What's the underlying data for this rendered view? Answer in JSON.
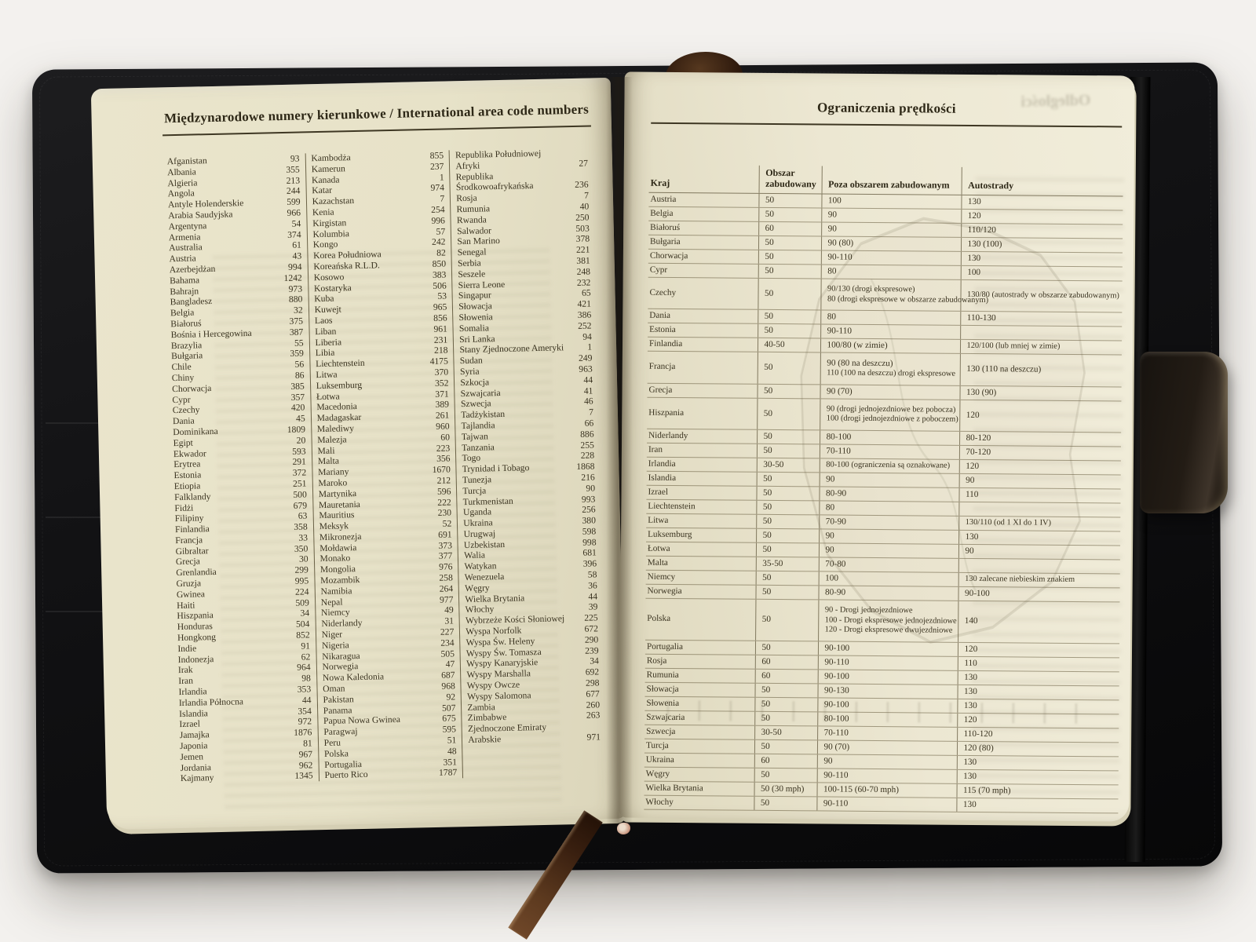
{
  "colors": {
    "cover": "#141414",
    "page": "#eae5cc",
    "ribbon": "#5d3a1f",
    "ink": "#39321f"
  },
  "left_page": {
    "title": "Międzynarodowe numery kierunkowe / International area code numbers",
    "columns": [
      {
        "entries": [
          [
            "Afganistan",
            "93"
          ],
          [
            "Albania",
            "355"
          ],
          [
            "Algieria",
            "213"
          ],
          [
            "Angola",
            "244"
          ],
          [
            "Antyle Holenderskie",
            "599"
          ],
          [
            "Arabia Saudyjska",
            "966"
          ],
          [
            "Argentyna",
            "54"
          ],
          [
            "Armenia",
            "374"
          ],
          [
            "Australia",
            "61"
          ],
          [
            "Austria",
            "43"
          ],
          [
            "Azerbejdżan",
            "994"
          ],
          [
            "Bahama",
            "1242"
          ],
          [
            "Bahrajn",
            "973"
          ],
          [
            "Bangladesz",
            "880"
          ],
          [
            "Belgia",
            "32"
          ],
          [
            "Białoruś",
            "375"
          ],
          [
            "Bośnia i Hercegowina",
            "387"
          ],
          [
            "Brazylia",
            "55"
          ],
          [
            "Bułgaria",
            "359"
          ],
          [
            "Chile",
            "56"
          ],
          [
            "Chiny",
            "86"
          ],
          [
            "Chorwacja",
            "385"
          ],
          [
            "Cypr",
            "357"
          ],
          [
            "Czechy",
            "420"
          ],
          [
            "Dania",
            "45"
          ],
          [
            "Dominikana",
            "1809"
          ],
          [
            "Egipt",
            "20"
          ],
          [
            "Ekwador",
            "593"
          ],
          [
            "Erytrea",
            "291"
          ],
          [
            "Estonia",
            "372"
          ],
          [
            "Etiopia",
            "251"
          ],
          [
            "Falklandy",
            "500"
          ],
          [
            "Fidżi",
            "679"
          ],
          [
            "Filipiny",
            "63"
          ],
          [
            "Finlandia",
            "358"
          ],
          [
            "Francja",
            "33"
          ],
          [
            "Gibraltar",
            "350"
          ],
          [
            "Grecja",
            "30"
          ],
          [
            "Grenlandia",
            "299"
          ],
          [
            "Gruzja",
            "995"
          ],
          [
            "Gwinea",
            "224"
          ],
          [
            "Haiti",
            "509"
          ],
          [
            "Hiszpania",
            "34"
          ],
          [
            "Honduras",
            "504"
          ],
          [
            "Hongkong",
            "852"
          ],
          [
            "Indie",
            "91"
          ],
          [
            "Indonezja",
            "62"
          ],
          [
            "Irak",
            "964"
          ],
          [
            "Iran",
            "98"
          ],
          [
            "Irlandia",
            "353"
          ],
          [
            "Irlandia Północna",
            "44"
          ],
          [
            "Islandia",
            "354"
          ],
          [
            "Izrael",
            "972"
          ],
          [
            "Jamajka",
            "1876"
          ],
          [
            "Japonia",
            "81"
          ],
          [
            "Jemen",
            "967"
          ],
          [
            "Jordania",
            "962"
          ],
          [
            "Kajmany",
            "1345"
          ]
        ]
      },
      {
        "entries": [
          [
            "Kambodża",
            "855"
          ],
          [
            "Kamerun",
            "237"
          ],
          [
            "Kanada",
            "1"
          ],
          [
            "Katar",
            "974"
          ],
          [
            "Kazachstan",
            "7"
          ],
          [
            "Kenia",
            "254"
          ],
          [
            "Kirgistan",
            "996"
          ],
          [
            "Kolumbia",
            "57"
          ],
          [
            "Kongo",
            "242"
          ],
          [
            "Korea Południowa",
            "82"
          ],
          [
            "Koreańska R.L.D.",
            "850"
          ],
          [
            "Kosowo",
            "383"
          ],
          [
            "Kostaryka",
            "506"
          ],
          [
            "Kuba",
            "53"
          ],
          [
            "Kuwejt",
            "965"
          ],
          [
            "Laos",
            "856"
          ],
          [
            "Liban",
            "961"
          ],
          [
            "Liberia",
            "231"
          ],
          [
            "Libia",
            "218"
          ],
          [
            "Liechtenstein",
            "4175"
          ],
          [
            "Litwa",
            "370"
          ],
          [
            "Luksemburg",
            "352"
          ],
          [
            "Łotwa",
            "371"
          ],
          [
            "Macedonia",
            "389"
          ],
          [
            "Madagaskar",
            "261"
          ],
          [
            "Malediwy",
            "960"
          ],
          [
            "Malezja",
            "60"
          ],
          [
            "Mali",
            "223"
          ],
          [
            "Malta",
            "356"
          ],
          [
            "Mariany",
            "1670"
          ],
          [
            "Maroko",
            "212"
          ],
          [
            "Martynika",
            "596"
          ],
          [
            "Mauretania",
            "222"
          ],
          [
            "Mauritius",
            "230"
          ],
          [
            "Meksyk",
            "52"
          ],
          [
            "Mikronezja",
            "691"
          ],
          [
            "Mołdawia",
            "373"
          ],
          [
            "Monako",
            "377"
          ],
          [
            "Mongolia",
            "976"
          ],
          [
            "Mozambik",
            "258"
          ],
          [
            "Namibia",
            "264"
          ],
          [
            "Nepal",
            "977"
          ],
          [
            "Niemcy",
            "49"
          ],
          [
            "Niderlandy",
            "31"
          ],
          [
            "Niger",
            "227"
          ],
          [
            "Nigeria",
            "234"
          ],
          [
            "Nikaragua",
            "505"
          ],
          [
            "Norwegia",
            "47"
          ],
          [
            "Nowa Kaledonia",
            "687"
          ],
          [
            "Oman",
            "968"
          ],
          [
            "Pakistan",
            "92"
          ],
          [
            "Panama",
            "507"
          ],
          [
            "Papua Nowa Gwinea",
            "675"
          ],
          [
            "Paragwaj",
            "595"
          ],
          [
            "Peru",
            "51"
          ],
          [
            "Polska",
            "48"
          ],
          [
            "Portugalia",
            "351"
          ],
          [
            "Puerto Rico",
            "1787"
          ]
        ]
      },
      {
        "entries": [
          [
            "Republika Południowej\nAfryki",
            "27"
          ],
          [
            "Republika\nŚrodkowoafrykańska",
            "236"
          ],
          [
            "Rosja",
            "7"
          ],
          [
            "Rumunia",
            "40"
          ],
          [
            "Rwanda",
            "250"
          ],
          [
            "Salwador",
            "503"
          ],
          [
            "San Marino",
            "378"
          ],
          [
            "Senegal",
            "221"
          ],
          [
            "Serbia",
            "381"
          ],
          [
            "Seszele",
            "248"
          ],
          [
            "Sierra Leone",
            "232"
          ],
          [
            "Singapur",
            "65"
          ],
          [
            "Słowacja",
            "421"
          ],
          [
            "Słowenia",
            "386"
          ],
          [
            "Somalia",
            "252"
          ],
          [
            "Sri Lanka",
            "94"
          ],
          [
            "Stany Zjednoczone Ameryki",
            "1"
          ],
          [
            "Sudan",
            "249"
          ],
          [
            "Syria",
            "963"
          ],
          [
            "Szkocja",
            "44"
          ],
          [
            "Szwajcaria",
            "41"
          ],
          [
            "Szwecja",
            "46"
          ],
          [
            "Tadżykistan",
            "7"
          ],
          [
            "Tajlandia",
            "66"
          ],
          [
            "Tajwan",
            "886"
          ],
          [
            "Tanzania",
            "255"
          ],
          [
            "Togo",
            "228"
          ],
          [
            "Trynidad i Tobago",
            "1868"
          ],
          [
            "Tunezja",
            "216"
          ],
          [
            "Turcja",
            "90"
          ],
          [
            "Turkmenistan",
            "993"
          ],
          [
            "Uganda",
            "256"
          ],
          [
            "Ukraina",
            "380"
          ],
          [
            "Urugwaj",
            "598"
          ],
          [
            "Uzbekistan",
            "998"
          ],
          [
            "Walia",
            "681"
          ],
          [
            "Watykan",
            "396"
          ],
          [
            "Wenezuela",
            "58"
          ],
          [
            "Węgry",
            "36"
          ],
          [
            "Wielka Brytania",
            "44"
          ],
          [
            "Włochy",
            "39"
          ],
          [
            "Wybrzeże Kości Słoniowej",
            "225"
          ],
          [
            "Wyspa Norfolk",
            "672"
          ],
          [
            "Wyspa Św. Heleny",
            "290"
          ],
          [
            "Wyspy Św. Tomasza",
            "239"
          ],
          [
            "Wyspy Kanaryjskie",
            "34"
          ],
          [
            "Wyspy Marshalla",
            "692"
          ],
          [
            "Wyspy Owcze",
            "298"
          ],
          [
            "Wyspy Salomona",
            "677"
          ],
          [
            "Zambia",
            "260"
          ],
          [
            "Zimbabwe",
            "263"
          ],
          [
            "Zjednoczone Emiraty\nArabskie",
            "971"
          ]
        ]
      }
    ]
  },
  "right_page": {
    "title": "Ograniczenia prędkości",
    "ghost_text": "Odległości",
    "table": {
      "headers": [
        "Kraj",
        "Obszar zabudowany",
        "Poza obszarem zabudowanym",
        "Autostrady"
      ],
      "rows": [
        [
          "Austria",
          "50",
          [
            "100"
          ],
          [
            "130"
          ]
        ],
        [
          "Belgia",
          "50",
          [
            "90"
          ],
          [
            "120"
          ]
        ],
        [
          "Białoruś",
          "60",
          [
            "90"
          ],
          [
            "110/120"
          ]
        ],
        [
          "Bułgaria",
          "50",
          [
            "90 (80)"
          ],
          [
            "130 (100)"
          ]
        ],
        [
          "Chorwacja",
          "50",
          [
            "90-110"
          ],
          [
            "130"
          ]
        ],
        [
          "Cypr",
          "50",
          [
            "80"
          ],
          [
            "100"
          ]
        ],
        [
          "Czechy",
          "50",
          [
            "90/130 (drogi ekspresowe)",
            "80 (drogi ekspresowe w obszarze zabudowanym)"
          ],
          [
            "130/80 (autostrady w obszarze zabudowanym)"
          ]
        ],
        [
          "Dania",
          "50",
          [
            "80"
          ],
          [
            "110-130"
          ]
        ],
        [
          "Estonia",
          "50",
          [
            "90-110"
          ],
          []
        ],
        [
          "Finlandia",
          "40-50",
          [
            "100/80 (w zimie)"
          ],
          [
            "120/100 (lub mniej w zimie)"
          ]
        ],
        [
          "Francja",
          "50",
          [
            "90 (80 na deszczu)",
            "110 (100 na deszczu) drogi ekspresowe"
          ],
          [
            "130 (110 na deszczu)"
          ]
        ],
        [
          "Grecja",
          "50",
          [
            "90 (70)"
          ],
          [
            "130 (90)"
          ]
        ],
        [
          "Hiszpania",
          "50",
          [
            "90 (drogi jednojezdniowe bez pobocza)",
            "100 (drogi jednojezdniowe z poboczem)"
          ],
          [
            "120"
          ]
        ],
        [
          "Niderlandy",
          "50",
          [
            "80-100"
          ],
          [
            "80-120"
          ]
        ],
        [
          "Iran",
          "50",
          [
            "70-110"
          ],
          [
            "70-120"
          ]
        ],
        [
          "Irlandia",
          "30-50",
          [
            "80-100 (ograniczenia są oznakowane)"
          ],
          [
            "120"
          ]
        ],
        [
          "Islandia",
          "50",
          [
            "90"
          ],
          [
            "90"
          ]
        ],
        [
          "Izrael",
          "50",
          [
            "80-90"
          ],
          [
            "110"
          ]
        ],
        [
          "Liechtenstein",
          "50",
          [
            "80"
          ],
          []
        ],
        [
          "Litwa",
          "50",
          [
            "70-90"
          ],
          [
            "130/110 (od 1 XI do 1 IV)"
          ]
        ],
        [
          "Luksemburg",
          "50",
          [
            "90"
          ],
          [
            "130"
          ]
        ],
        [
          "Łotwa",
          "50",
          [
            "90"
          ],
          [
            "90"
          ]
        ],
        [
          "Malta",
          "35-50",
          [
            "70-80"
          ],
          []
        ],
        [
          "Niemcy",
          "50",
          [
            "100"
          ],
          [
            "130 zalecane niebieskim znakiem"
          ]
        ],
        [
          "Norwegia",
          "50",
          [
            "80-90"
          ],
          [
            "90-100"
          ]
        ],
        [
          "Polska",
          "50",
          [
            "90 - Drogi jednojezdniowe",
            "100 - Drogi ekspresowe jednojezdniowe",
            "120 - Drogi ekspresowe dwujezdniowe"
          ],
          [
            "140"
          ]
        ],
        [
          "Portugalia",
          "50",
          [
            "90-100"
          ],
          [
            "120"
          ]
        ],
        [
          "Rosja",
          "60",
          [
            "90-110"
          ],
          [
            "110"
          ]
        ],
        [
          "Rumunia",
          "60",
          [
            "90-100"
          ],
          [
            "130"
          ]
        ],
        [
          "Słowacja",
          "50",
          [
            "90-130"
          ],
          [
            "130"
          ]
        ],
        [
          "Słowenia",
          "50",
          [
            "90-100"
          ],
          [
            "130"
          ]
        ],
        [
          "Szwajcaria",
          "50",
          [
            "80-100"
          ],
          [
            "120"
          ]
        ],
        [
          "Szwecja",
          "30-50",
          [
            "70-110"
          ],
          [
            "110-120"
          ]
        ],
        [
          "Turcja",
          "50",
          [
            "90 (70)"
          ],
          [
            "120 (80)"
          ]
        ],
        [
          "Ukraina",
          "60",
          [
            "90"
          ],
          [
            "130"
          ]
        ],
        [
          "Węgry",
          "50",
          [
            "90-110"
          ],
          [
            "130"
          ]
        ],
        [
          "Wielka Brytania",
          "50 (30 mph)",
          [
            "100-115 (60-70 mph)"
          ],
          [
            "115 (70 mph)"
          ]
        ],
        [
          "Włochy",
          "50",
          [
            "90-110"
          ],
          [
            "130"
          ]
        ]
      ]
    }
  }
}
